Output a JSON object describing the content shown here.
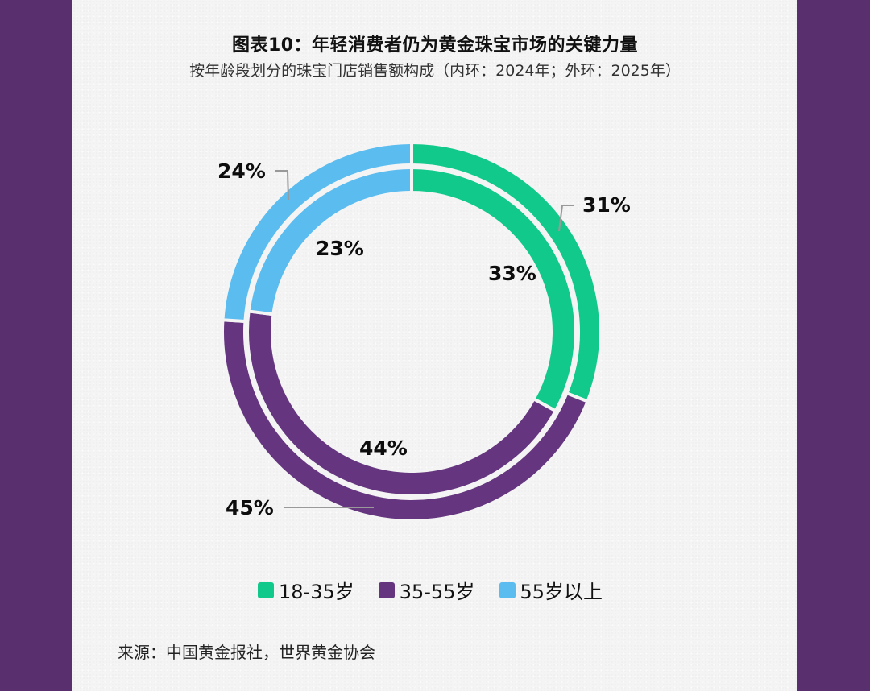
{
  "title": "图表10：年轻消费者仍为黄金珠宝市场的关键力量",
  "subtitle": "按年龄段划分的珠宝门店销售额构成（内环：2024年；外环：2025年）",
  "source": "来源：中国黄金报社，世界黄金协会",
  "colors": {
    "frame": "#5a2f6e",
    "green": "#10c98a",
    "purple": "#65367f",
    "blue": "#5bbcf0"
  },
  "labels": {
    "inner_18_35": "33%",
    "inner_35_55": "44%",
    "inner_55_plus": "23%",
    "outer_18_35": "31%",
    "outer_35_55": "45%",
    "outer_55_plus": "24%"
  },
  "legend": [
    {
      "label": "18-35岁",
      "color": "#10c98a"
    },
    {
      "label": "35-55岁",
      "color": "#65367f"
    },
    {
      "label": "55岁以上",
      "color": "#5bbcf0"
    }
  ],
  "chart_data": {
    "type": "pie",
    "subtype": "nested-donut",
    "title": "图表10：年轻消费者仍为黄金珠宝市场的关键力量",
    "subtitle": "按年龄段划分的珠宝门店销售额构成（内环：2024年；外环：2025年）",
    "categories": [
      "18-35岁",
      "35-55岁",
      "55岁以上"
    ],
    "series": [
      {
        "name": "2024年（内环）",
        "values": [
          33,
          44,
          23
        ]
      },
      {
        "name": "2025年（外环）",
        "values": [
          31,
          45,
          24
        ]
      }
    ],
    "unit": "%",
    "legend_position": "bottom",
    "source": "来源：中国黄金报社，世界黄金协会"
  }
}
